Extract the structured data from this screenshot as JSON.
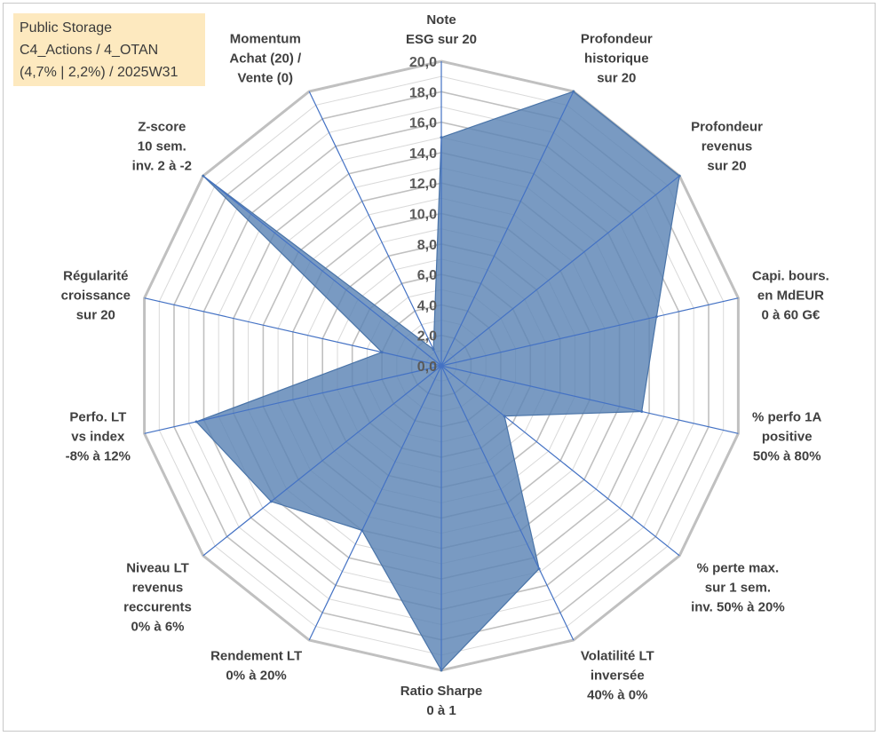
{
  "info_box": {
    "lines": [
      "Public Storage",
      "C4_Actions / 4_OTAN",
      "(4,7% | 2,2%) / 2025W31"
    ]
  },
  "chart_data": {
    "type": "radar",
    "title": "",
    "rlim": [
      0,
      20
    ],
    "tick_labels": [
      "0,0",
      "2,0",
      "4,0",
      "6,0",
      "8,0",
      "10,0",
      "12,0",
      "14,0",
      "16,0",
      "18,0",
      "20,0"
    ],
    "axes": [
      {
        "label_lines": [
          "Note",
          "ESG sur 20"
        ]
      },
      {
        "label_lines": [
          "Profondeur",
          "historique",
          "sur 20"
        ]
      },
      {
        "label_lines": [
          "Profondeur",
          "revenus",
          "sur 20"
        ]
      },
      {
        "label_lines": [
          "Capi. bours.",
          "en MdEUR",
          "0 à 60 G€"
        ]
      },
      {
        "label_lines": [
          "% perfo 1A",
          "positive",
          "50% à 80%"
        ]
      },
      {
        "label_lines": [
          "% perte max.",
          "sur 1 sem.",
          "inv. 50% à 20%"
        ]
      },
      {
        "label_lines": [
          "Volatilité LT",
          "inversée",
          "40% à 0%"
        ]
      },
      {
        "label_lines": [
          "Ratio Sharpe",
          "0 à 1"
        ]
      },
      {
        "label_lines": [
          "Rendement LT",
          "0% à 20%"
        ]
      },
      {
        "label_lines": [
          "Niveau LT",
          "revenus",
          "reccurents",
          "0% à 6%"
        ]
      },
      {
        "label_lines": [
          "Perfo. LT",
          "vs index",
          "-8% à 12%"
        ]
      },
      {
        "label_lines": [
          "Régularité",
          "croissance",
          "sur 20"
        ]
      },
      {
        "label_lines": [
          "Z-score",
          "10 sem.",
          "inv. 2 à -2"
        ]
      },
      {
        "label_lines": [
          "Momentum",
          "Achat (20) /",
          "Vente (0)"
        ]
      }
    ],
    "series": [
      {
        "values": [
          15,
          20,
          20,
          14.5,
          13.5,
          5.3,
          14.8,
          20,
          12,
          14.3,
          16.5,
          4,
          20,
          1.2
        ]
      }
    ],
    "grid": true,
    "legend": "none",
    "colors": {
      "fill": "#5b84b5",
      "stroke": "#4a74a8",
      "spoke": "#4472c4",
      "grid": "#c0c0c0",
      "grid_minor": "#d9d9d9"
    }
  }
}
